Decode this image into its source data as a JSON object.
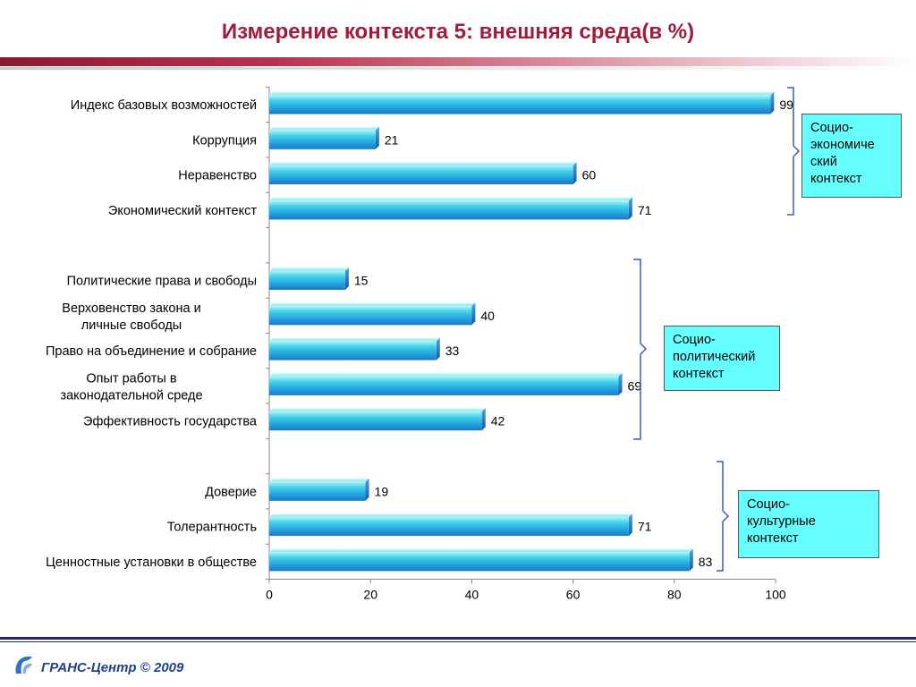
{
  "header": {
    "title": "Измерение контекста 5: внешняя среда(в %)"
  },
  "chart_data": {
    "type": "bar",
    "orientation": "horizontal",
    "categories": [
      "Индекс базовых возможностей",
      "Коррупция",
      "Неравенство",
      "Экономический контекст",
      "",
      "Политические права и свободы",
      "Верховенство закона и личные свободы",
      "Право на объединение и собрание",
      "Опыт работы в законодательной среде",
      "Эффективность государства",
      "",
      "Доверие",
      "Толерантность",
      "Ценностные установки в обществе"
    ],
    "values": [
      99,
      21,
      60,
      71,
      null,
      15,
      40,
      33,
      69,
      42,
      null,
      19,
      71,
      83
    ],
    "value_labels": [
      "99",
      "21",
      "60",
      "71",
      "",
      "15",
      "40",
      "33",
      "69",
      "42",
      "",
      "19",
      "71",
      "83"
    ],
    "xlim": [
      0,
      100
    ],
    "xticks": [
      "0",
      "20",
      "40",
      "60",
      "80",
      "100"
    ],
    "grid": false,
    "colors": {
      "bar_light": "#5fe3e6",
      "bar_mid": "#2aa8e0",
      "bar_dark": "#1a6fc6"
    }
  },
  "groups": [
    {
      "label": "Социо-экономиче­ский контекст",
      "lines": [
        "Социо-",
        "экономиче",
        "ский",
        "контекст"
      ]
    },
    {
      "label": "Социо-политический контекст",
      "lines": [
        "Социо-",
        "политический",
        "контекст"
      ]
    },
    {
      "label": "Социо-культурные контекст",
      "lines": [
        "Социо-",
        "культурные",
        "контекст"
      ]
    }
  ],
  "footer": {
    "text": "ГРАНС-Центр © 2009"
  }
}
